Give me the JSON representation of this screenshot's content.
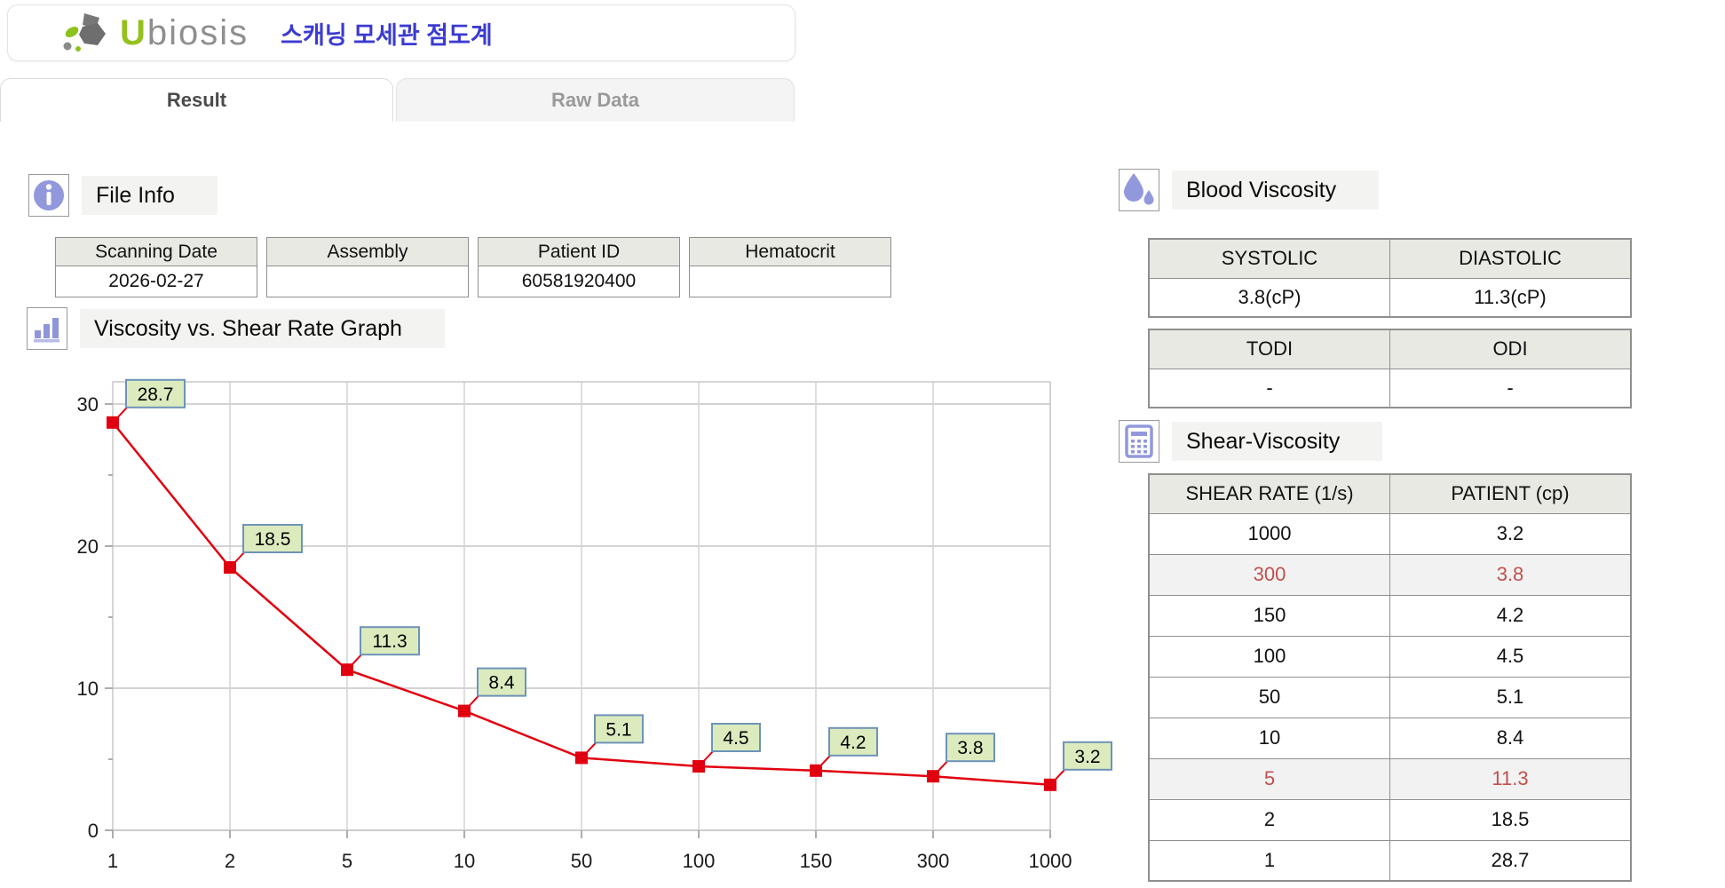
{
  "header": {
    "logo_u": "U",
    "logo_rest": "biosis",
    "app_title": "스캐닝 모세관 점도계"
  },
  "tabs": {
    "result": "Result",
    "raw_data": "Raw Data"
  },
  "file_info": {
    "section_title": "File Info",
    "fields": [
      {
        "label": "Scanning Date",
        "value": "2026-02-27"
      },
      {
        "label": "Assembly",
        "value": ""
      },
      {
        "label": "Patient ID",
        "value": "60581920400"
      },
      {
        "label": "Hematocrit",
        "value": ""
      }
    ]
  },
  "graph_section": {
    "section_title": "Viscosity vs. Shear Rate Graph"
  },
  "chart_data": {
    "type": "line",
    "title": "Viscosity vs. Shear Rate Graph",
    "categories": [
      "1",
      "2",
      "5",
      "10",
      "50",
      "100",
      "150",
      "300",
      "1000"
    ],
    "values": [
      28.7,
      18.5,
      11.3,
      8.4,
      5.1,
      4.5,
      4.2,
      3.8,
      3.2
    ],
    "xlabel": "",
    "ylabel": "",
    "ylim": [
      0,
      30
    ],
    "y_ticks": [
      0,
      10,
      20,
      30
    ],
    "y_minor_ticks": [
      5,
      15,
      25
    ],
    "grid": true,
    "legend": "none",
    "line_color": "#e1000f",
    "marker": "square",
    "label_box_fill": "#dcebbe",
    "label_box_border": "#6d93b8"
  },
  "blood_viscosity": {
    "section_title": "Blood Viscosity",
    "table1": {
      "headers": [
        "SYSTOLIC",
        "DIASTOLIC"
      ],
      "values": [
        "3.8(cP)",
        "11.3(cP)"
      ]
    },
    "table2": {
      "headers": [
        "TODI",
        "ODI"
      ],
      "values": [
        "-",
        "-"
      ]
    }
  },
  "shear_viscosity": {
    "section_title": "Shear-Viscosity",
    "headers": [
      "SHEAR RATE (1/s)",
      "PATIENT (cp)"
    ],
    "rows": [
      {
        "shear_rate": "1000",
        "patient": "3.2",
        "highlight": false
      },
      {
        "shear_rate": "300",
        "patient": "3.8",
        "highlight": true
      },
      {
        "shear_rate": "150",
        "patient": "4.2",
        "highlight": false
      },
      {
        "shear_rate": "100",
        "patient": "4.5",
        "highlight": false
      },
      {
        "shear_rate": "50",
        "patient": "5.1",
        "highlight": false
      },
      {
        "shear_rate": "10",
        "patient": "8.4",
        "highlight": false
      },
      {
        "shear_rate": "5",
        "patient": "11.3",
        "highlight": true
      },
      {
        "shear_rate": "2",
        "patient": "18.5",
        "highlight": false
      },
      {
        "shear_rate": "1",
        "patient": "28.7",
        "highlight": false
      }
    ],
    "highlight_text_color": "#c0504d"
  },
  "colors": {
    "accent_icon": "#8f95da",
    "title_blue": "#3b3bd1",
    "logo_green": "#95c11f",
    "table_header_bg": "#e9e9e4",
    "series_red": "#e1000f"
  }
}
